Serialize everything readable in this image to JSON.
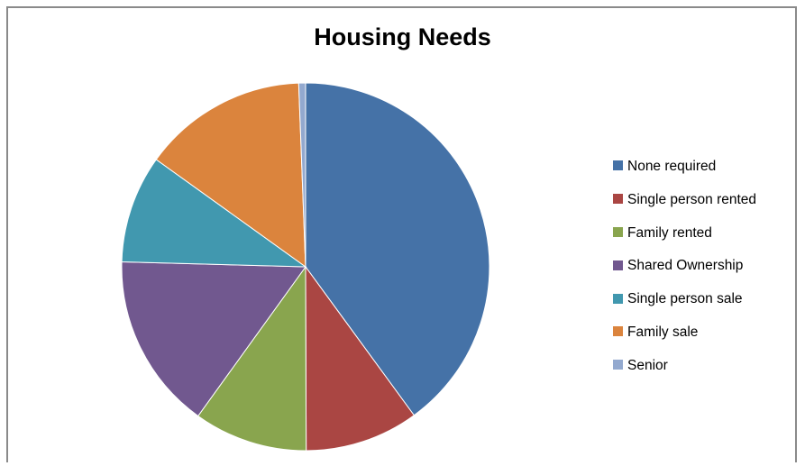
{
  "chart_data": {
    "type": "pie",
    "title": "Housing Needs",
    "categories": [
      "None required",
      "Single person rented",
      "Family rented",
      "Shared Ownership",
      "Single person sale",
      "Family sale",
      "Senior"
    ],
    "values": [
      40,
      10,
      10,
      15.5,
      9.5,
      14.5,
      0.6
    ],
    "colors": [
      "#4572a7",
      "#aa4643",
      "#89a54e",
      "#71588f",
      "#4198af",
      "#db843d",
      "#93a9cf"
    ],
    "legend_position": "right"
  }
}
